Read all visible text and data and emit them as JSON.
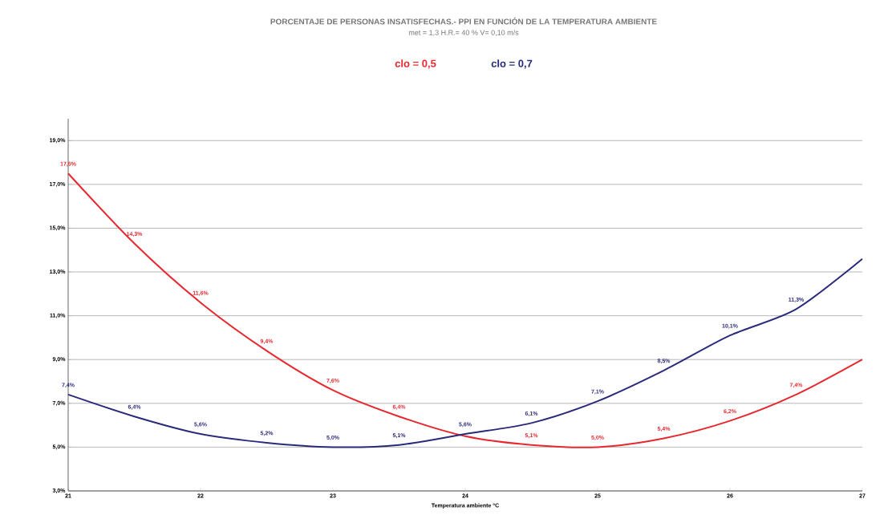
{
  "chart_data": {
    "type": "line",
    "title": "PORCENTAJE DE PERSONAS INSATISFECHAS.-  PPI   EN FUNCIÓN DE LA TEMPERATURA AMBIENTE",
    "subtitle": "met = 1,3    H.R.= 40 %    V= 0,10 m/s",
    "xlabel": "Temperatura ambiente °C",
    "x": [
      21,
      21.5,
      22,
      22.5,
      23,
      23.5,
      24,
      24.5,
      25,
      25.5,
      26,
      26.5,
      27
    ],
    "series": [
      {
        "name": "clo = 0,5",
        "color": "#e8282f",
        "values": [
          17.5,
          14.3,
          11.6,
          9.4,
          7.6,
          6.4,
          5.5,
          5.1,
          5.0,
          5.4,
          6.2,
          7.4,
          9.0
        ],
        "value_labels": [
          "17,5%",
          "14,3%",
          "11,6%",
          "9,4%",
          "7,6%",
          "6,4%",
          null,
          "5,1%",
          "5,0%",
          "5,4%",
          "6,2%",
          "7,4%",
          null
        ]
      },
      {
        "name": "clo = 0,7",
        "color": "#2a2a7a",
        "values": [
          7.4,
          6.4,
          5.6,
          5.2,
          5.0,
          5.1,
          5.6,
          6.1,
          7.1,
          8.5,
          10.1,
          11.3,
          13.6
        ],
        "value_labels": [
          "7,4%",
          "6,4%",
          "5,6%",
          "5,2%",
          "5,0%",
          "5,1%",
          "5,6%",
          "6,1%",
          "7,1%",
          "8,5%",
          "10,1%",
          "11,3%",
          null
        ]
      }
    ],
    "xlim": [
      21,
      27
    ],
    "xticks": [
      21,
      22,
      23,
      24,
      25,
      26,
      27
    ],
    "ylim": [
      3,
      20
    ],
    "yticks": [
      {
        "value": 3,
        "label": "3,0%"
      },
      {
        "value": 5,
        "label": "5,0%"
      },
      {
        "value": 7,
        "label": "7,0%"
      },
      {
        "value": 9,
        "label": "9,0%"
      },
      {
        "value": 11,
        "label": "11,0%"
      },
      {
        "value": 13,
        "label": "13,0%"
      },
      {
        "value": 15,
        "label": "15,0%"
      },
      {
        "value": 17,
        "label": "17,0%"
      },
      {
        "value": 19,
        "label": "19,0%"
      }
    ],
    "grid": "y",
    "legend": "top"
  }
}
